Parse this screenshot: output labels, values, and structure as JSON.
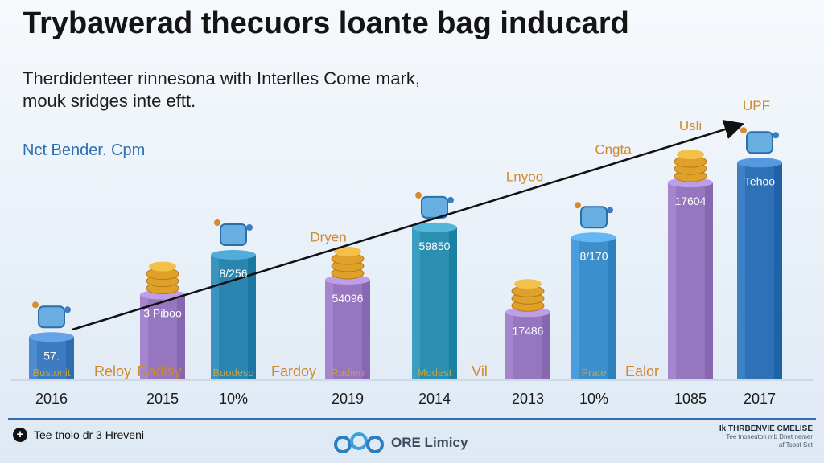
{
  "header": {
    "title": "Trybawerad thecuors loante bag inducard",
    "subtitle_line1": "Therdidenteer rinnesona with Interlles Come mark,",
    "subtitle_line2": "mouk sridges inte eftt.",
    "source": "Nct Bender. Cpm"
  },
  "chart_data": {
    "type": "bar",
    "title": "Trybawerad thecuors loante bag inducard",
    "xlabel": "",
    "ylabel": "",
    "ylim": [
      0,
      100
    ],
    "categories": [
      "2016",
      "2015",
      "10%",
      "2019",
      "2014",
      "2013",
      "10%",
      "1085",
      "2017"
    ],
    "values": [
      17,
      34,
      50,
      40,
      61,
      27,
      57,
      79,
      87
    ],
    "bar_colors": [
      "#3d7cc0",
      "#9576bf",
      "#2a86b0",
      "#9576bf",
      "#2b8fb2",
      "#9576bf",
      "#3a8fcc",
      "#9576bf",
      "#2f71b7"
    ],
    "bar_value_labels": [
      "57.",
      "3 Piboo",
      "8/256",
      "54096",
      "59850",
      "17486",
      "8/170",
      "17604",
      "Tehoo"
    ],
    "bar_base_labels": [
      "Bustonit",
      "",
      "Buodesu",
      "Radien",
      "Modest",
      "",
      "Prate",
      "",
      ""
    ],
    "between_labels": [
      "Reloy",
      "Radisy",
      "Fardoy",
      "Vil",
      "Ealor"
    ],
    "trend_labels": [
      "Dryen",
      "Lnyoo",
      "Cngta",
      "Usli",
      "UPF"
    ],
    "trend_start_value": 20,
    "trend_end_value": 102
  },
  "footer": {
    "plus_icon": "+",
    "note": "Tee tnolo dr 3 Hreveni",
    "brand": "ORE Limicy",
    "right_main": "Ik THRBENVIE CMELISE",
    "right_sub1": "Tee tnoseuton mb Dnet nemer",
    "right_sub2": "af Tsbot Set"
  }
}
